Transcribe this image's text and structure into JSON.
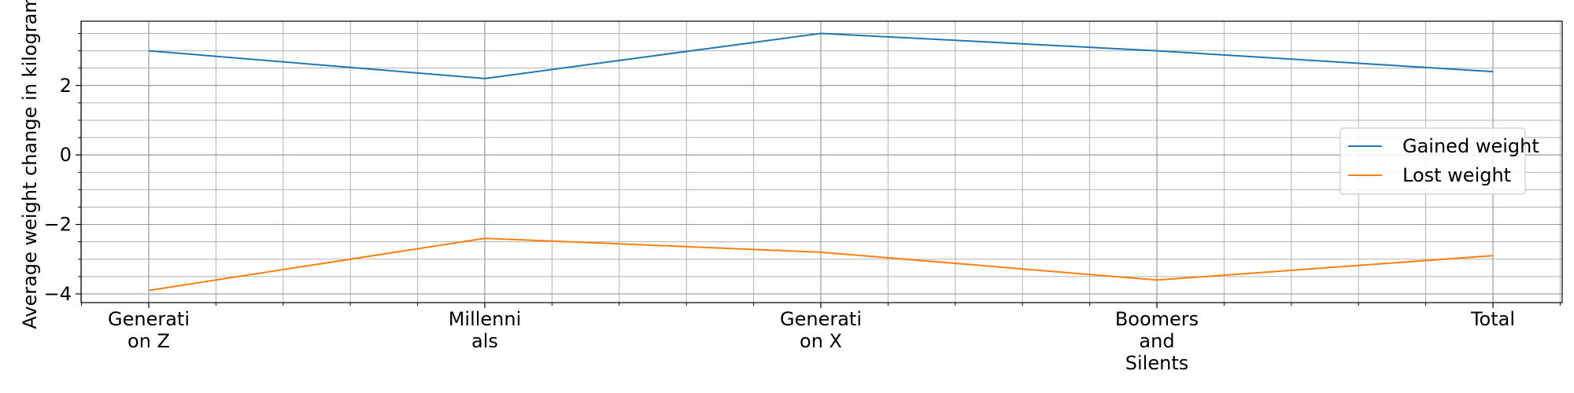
{
  "chart_data": {
    "type": "line",
    "categories": [
      "Generation Z",
      "Millennials",
      "Generation X",
      "Boomers and Silents",
      "Total"
    ],
    "category_tick_lines": [
      [
        "Generati",
        "on Z"
      ],
      [
        "Millenni",
        "als"
      ],
      [
        "Generati",
        "on X"
      ],
      [
        "Boomers",
        "and",
        "Silents"
      ],
      [
        "Total"
      ]
    ],
    "series": [
      {
        "name": "Gained weight",
        "values": [
          3.0,
          2.2,
          3.5,
          3.0,
          2.4
        ],
        "color": "#1f77b4"
      },
      {
        "name": "Lost weight",
        "values": [
          -3.9,
          -2.4,
          -2.8,
          -3.6,
          -2.9
        ],
        "color": "#ff7f0e"
      }
    ],
    "title": "",
    "xlabel": "",
    "ylabel": "Average weight change in kilogram",
    "ylim": [
      -4.25,
      3.85
    ],
    "yticks": [
      -4,
      -2,
      0,
      2
    ],
    "ytick_labels": [
      "−4",
      "−2",
      "0",
      "2"
    ],
    "grid": true,
    "minor_grid": true,
    "legend_position": "center-right"
  }
}
